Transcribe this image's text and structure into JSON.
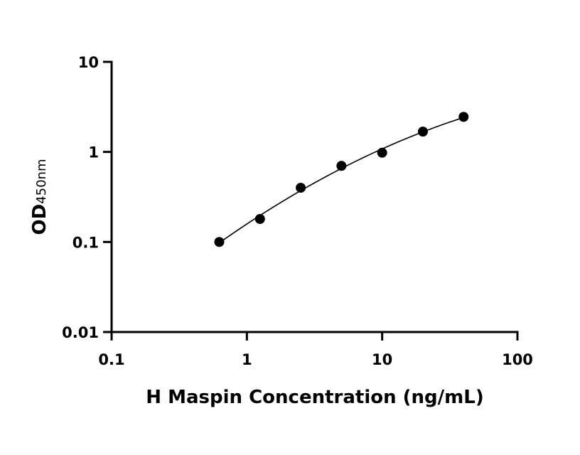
{
  "chart_data": {
    "type": "scatter",
    "title": "",
    "xlabel": "H Maspin Concentration (ng/mL)",
    "ylabel": {
      "main": "OD",
      "subscript": "450nm"
    },
    "xscale": "log",
    "yscale": "log",
    "xlim": [
      0.1,
      100
    ],
    "ylim": [
      0.01,
      10
    ],
    "x_ticks": [
      0.1,
      1,
      10,
      100
    ],
    "x_tick_labels": [
      "0.1",
      "1",
      "10",
      "100"
    ],
    "y_ticks": [
      0.01,
      0.1,
      1,
      10
    ],
    "y_tick_labels": [
      "0.01",
      "0.1",
      "1",
      "10"
    ],
    "grid": false,
    "legend": "none",
    "series": [
      {
        "x": [
          0.625,
          1.25,
          2.5,
          5,
          10,
          20,
          40
        ],
        "y": [
          0.1,
          0.18,
          0.4,
          0.7,
          0.98,
          1.68,
          2.45
        ],
        "marker": "circle",
        "color": "#000000",
        "fit_curve": true
      }
    ]
  }
}
